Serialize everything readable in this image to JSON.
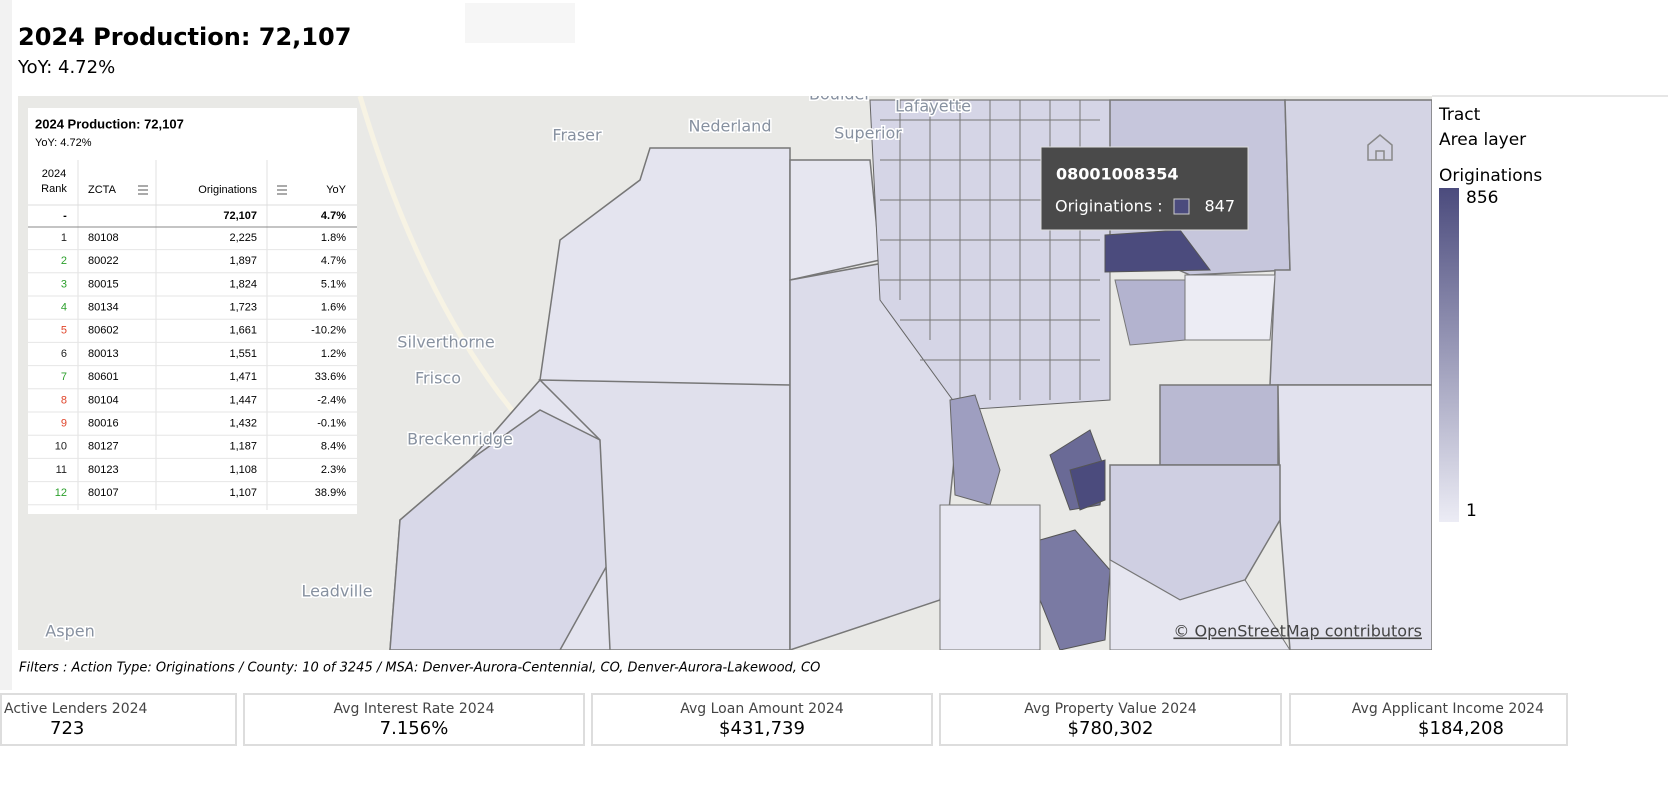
{
  "header": {
    "title": "2024 Production: 72,107",
    "subtitle": "YoY: 4.72%"
  },
  "map": {
    "places": [
      "Boulder",
      "Lafayette",
      "Fraser",
      "Nederland",
      "Superior",
      "Silverthorne",
      "Frisco",
      "Breckenridge",
      "Leadville",
      "Aspen"
    ],
    "attribution": "© OpenStreetMap contributors"
  },
  "table": {
    "title": "2024 Production: 72,107",
    "subtitle": "YoY: 4.72%",
    "rank_header": [
      "2024",
      "Rank"
    ],
    "columns": [
      "ZCTA",
      "Originations",
      "YoY"
    ],
    "total": {
      "rank": "-",
      "originations": "72,107",
      "yoy": "4.7%"
    },
    "rows": [
      {
        "rank": 1,
        "zcta": "80108",
        "originations": "2,225",
        "yoy": "1.8%",
        "rank_color": "#222222"
      },
      {
        "rank": 2,
        "zcta": "80022",
        "originations": "1,897",
        "yoy": "4.7%",
        "rank_color": "#2ca02c"
      },
      {
        "rank": 3,
        "zcta": "80015",
        "originations": "1,824",
        "yoy": "5.1%",
        "rank_color": "#2ca02c"
      },
      {
        "rank": 4,
        "zcta": "80134",
        "originations": "1,723",
        "yoy": "1.6%",
        "rank_color": "#2ca02c"
      },
      {
        "rank": 5,
        "zcta": "80602",
        "originations": "1,661",
        "yoy": "-10.2%",
        "rank_color": "#e0442a"
      },
      {
        "rank": 6,
        "zcta": "80013",
        "originations": "1,551",
        "yoy": "1.2%",
        "rank_color": "#222222"
      },
      {
        "rank": 7,
        "zcta": "80601",
        "originations": "1,471",
        "yoy": "33.6%",
        "rank_color": "#2ca02c"
      },
      {
        "rank": 8,
        "zcta": "80104",
        "originations": "1,447",
        "yoy": "-2.4%",
        "rank_color": "#e0442a"
      },
      {
        "rank": 9,
        "zcta": "80016",
        "originations": "1,432",
        "yoy": "-0.1%",
        "rank_color": "#e0442a"
      },
      {
        "rank": 10,
        "zcta": "80127",
        "originations": "1,187",
        "yoy": "8.4%",
        "rank_color": "#222222"
      },
      {
        "rank": 11,
        "zcta": "80123",
        "originations": "1,108",
        "yoy": "2.3%",
        "rank_color": "#222222"
      },
      {
        "rank": 12,
        "zcta": "80107",
        "originations": "1,107",
        "yoy": "38.9%",
        "rank_color": "#2ca02c"
      }
    ]
  },
  "tooltip": {
    "id": "08001008354",
    "label": "Originations :",
    "value": 847
  },
  "legend": {
    "layer": "Tract",
    "sublayer": "Area layer",
    "title": "Originations",
    "max": 856,
    "min": 1
  },
  "filters": "Filters : Action Type: Originations / County: 10 of 3245 / MSA: Denver-Aurora-Centennial, CO, Denver-Aurora-Lakewood, CO",
  "kpis": [
    {
      "label": "Active Lenders 2024",
      "value": "723"
    },
    {
      "label": "Avg Interest Rate 2024",
      "value": "7.156%"
    },
    {
      "label": "Avg Loan Amount 2024",
      "value": "$431,739"
    },
    {
      "label": "Avg Property Value 2024",
      "value": "$780,302"
    },
    {
      "label": "Avg Applicant Income 2024",
      "value": "$184,208"
    }
  ]
}
